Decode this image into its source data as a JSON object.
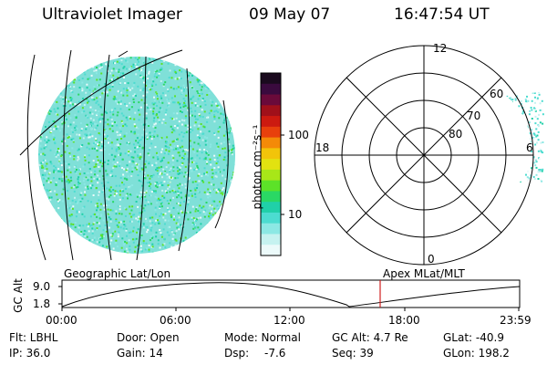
{
  "header": {
    "instrument": "Ultraviolet Imager",
    "date": "09 May 07",
    "time": "16:47:54 UT"
  },
  "colorbar": {
    "label": "photon cm⁻²s⁻¹",
    "ticks": [
      "100",
      "10"
    ],
    "colors": [
      "#1a0a1e",
      "#3a0a3e",
      "#6a0a3a",
      "#a0101a",
      "#cc1a10",
      "#e8400c",
      "#f48a08",
      "#f2c40a",
      "#e2e210",
      "#a8e618",
      "#5ce228",
      "#2ad864",
      "#20d0a8",
      "#4cdcd0",
      "#8ce8e4",
      "#c6f2f0",
      "#ecfafa"
    ]
  },
  "polar": {
    "labels": {
      "top": "12",
      "left": "18",
      "right": "6",
      "bottom": "0"
    },
    "rings": [
      "60",
      "70",
      "80"
    ]
  },
  "timeline": {
    "ylabel": "GC Alt",
    "yticks": [
      "9.0",
      "1.8"
    ],
    "left_title": "Geographic Lat/Lon",
    "right_title": "Apex MLat/MLT",
    "xticks": [
      "00:00",
      "06:00",
      "12:00",
      "18:00",
      "23:59"
    ],
    "marker_color": "#d02020"
  },
  "footer": {
    "flt": "Flt: LBHL",
    "ip": "IP: 36.0",
    "door": "Door: Open",
    "gain": "Gain: 14",
    "mode": "Mode: Normal",
    "dsp_label": "Dsp:",
    "dsp_value": "-7.6",
    "gcalt": "GC Alt: 4.7 Re",
    "seq": "Seq: 39",
    "glat": "GLat: -40.9",
    "glon": "GLon: 198.2"
  },
  "chart_data": {
    "type": "line",
    "x": [
      "00:00",
      "06:00",
      "12:00",
      "18:00",
      "23:59"
    ],
    "ylabel": "GC Alt",
    "ylim": [
      1.8,
      9.0
    ]
  }
}
